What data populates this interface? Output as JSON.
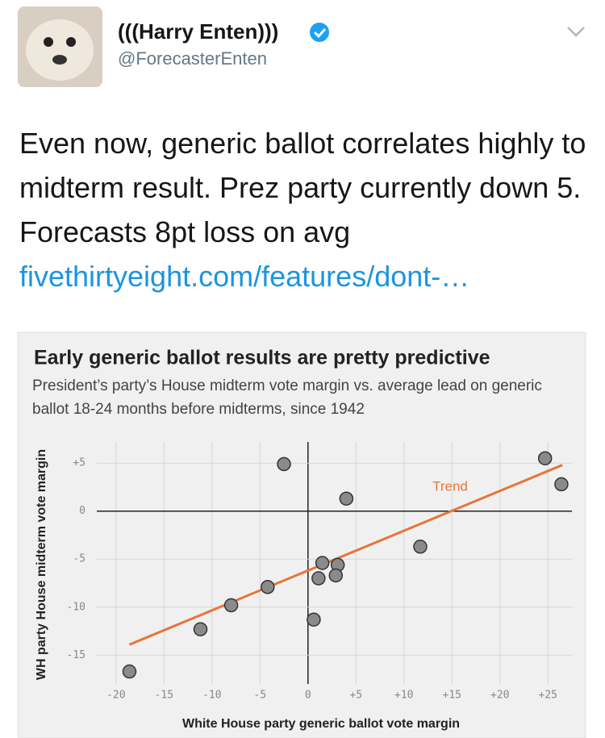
{
  "tweet": {
    "name": "(((Harry Enten)))",
    "handle": "@ForecasterEnten",
    "text": "Even now, generic ballot correlates highly to midterm result. Prez party currently down 5. Forecasts 8pt loss on avg",
    "link": "fivethirtyeight.com/features/dont-…"
  },
  "chart_data": {
    "type": "scatter",
    "title": "Early generic ballot results are pretty predictive",
    "subtitle": "President’s party’s House midterm vote margin vs. average lead on generic ballot 18-24 months before midterms, since 1942",
    "x_label": "White House party generic ballot vote margin",
    "y_label": "WH party House midterm vote margin",
    "x": [
      -2.5,
      24.7,
      26.4,
      4.0,
      11.7,
      1.5,
      3.1,
      1.1,
      2.9,
      -4.2,
      -8.0,
      0.6,
      -11.2,
      -18.6
    ],
    "values": [
      4.9,
      5.5,
      2.8,
      1.3,
      -3.7,
      -5.4,
      -5.6,
      -7.0,
      -6.7,
      -7.9,
      -9.8,
      -11.3,
      -12.3,
      -16.7
    ],
    "color": "#8a8a8a",
    "trend": {
      "label": "Trend",
      "x": [
        -18.6,
        26.5
      ],
      "y": [
        -13.9,
        4.8
      ],
      "color": "#e8743b"
    },
    "xlim": [
      -22,
      27.5
    ],
    "ylim": [
      -18,
      7.2
    ],
    "xticks": [
      -20,
      -15,
      -10,
      -5,
      0,
      {
        "value": 5,
        "label": "+5"
      },
      {
        "value": 10,
        "label": "+10"
      },
      {
        "value": 15,
        "label": "+15"
      },
      {
        "value": 20,
        "label": "+20"
      },
      {
        "value": 25,
        "label": "+25"
      }
    ],
    "yticks": [
      {
        "value": 5,
        "label": "+5"
      },
      0,
      -5,
      -10,
      -15
    ],
    "grid": true
  }
}
